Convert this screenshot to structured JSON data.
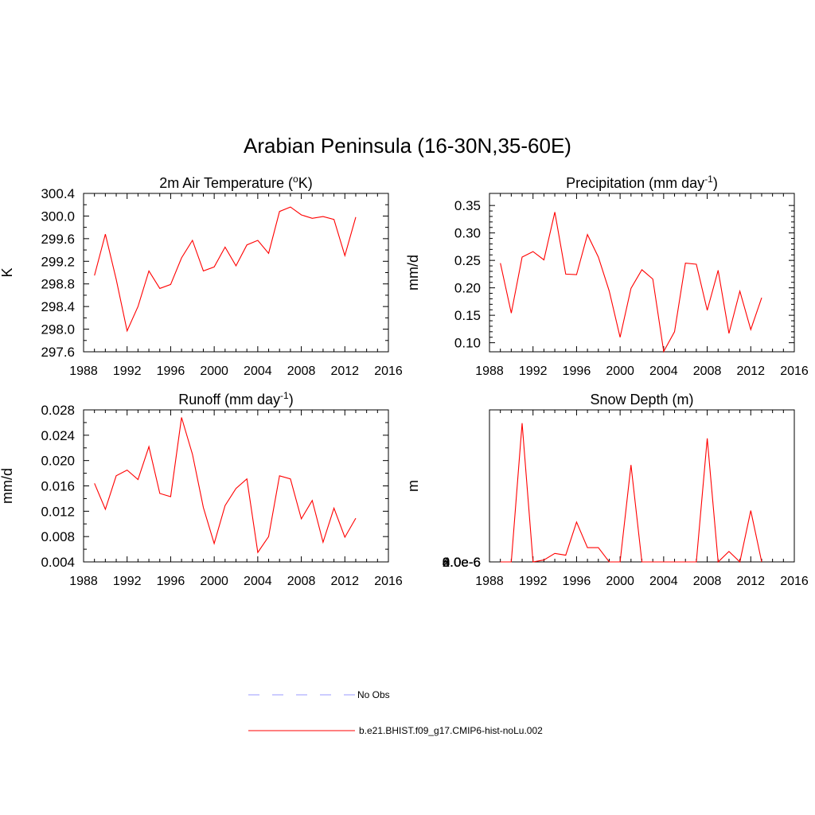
{
  "figure": {
    "title": "Arabian Peninsula (16-30N,35-60E)"
  },
  "legend": {
    "entries": [
      {
        "label": "No Obs",
        "color": "#9999ff",
        "dash": true
      },
      {
        "label": "b.e21.BHIST.f09_g17.CMIP6-hist-noLu.002",
        "color": "#ff0000",
        "dash": false
      }
    ]
  },
  "chart_data": [
    {
      "type": "line",
      "title": "2m Air Temperature (",
      "title_sup": "o",
      "title_after": "K)",
      "ylabel": "K",
      "xlim": [
        1988,
        2016
      ],
      "ylim": [
        297.6,
        300.4
      ],
      "xticks": [
        "1988",
        "1992",
        "1996",
        "2000",
        "2004",
        "2008",
        "2012",
        "2016"
      ],
      "yticks": [
        "297.6",
        "298.0",
        "298.4",
        "298.8",
        "299.2",
        "299.6",
        "300.0",
        "300.4"
      ],
      "series": [
        {
          "color": "#ff0000",
          "x": [
            1989,
            1990,
            1991,
            1992,
            1993,
            1994,
            1995,
            1996,
            1997,
            1998,
            1999,
            2000,
            2001,
            2002,
            2003,
            2004,
            2005,
            2006,
            2007,
            2008,
            2009,
            2010,
            2011,
            2012,
            2013
          ],
          "y": [
            298.95,
            299.68,
            298.88,
            297.97,
            298.4,
            299.03,
            298.72,
            298.79,
            299.26,
            299.57,
            299.03,
            299.1,
            299.45,
            299.12,
            299.49,
            299.57,
            299.34,
            300.08,
            300.16,
            300.02,
            299.96,
            299.99,
            299.94,
            299.3,
            299.98
          ]
        }
      ]
    },
    {
      "type": "line",
      "title": "Precipitation (mm day",
      "title_sup": "-1",
      "title_after": ")",
      "ylabel": "mm/d",
      "xlim": [
        1988,
        2016
      ],
      "ylim": [
        0.0835,
        0.372
      ],
      "xticks": [
        "1988",
        "1992",
        "1996",
        "2000",
        "2004",
        "2008",
        "2012",
        "2016"
      ],
      "yticks": [
        "0.10",
        "0.15",
        "0.20",
        "0.25",
        "0.30",
        "0.35"
      ],
      "series": [
        {
          "color": "#ff0000",
          "x": [
            1989,
            1990,
            1991,
            1992,
            1993,
            1994,
            1995,
            1996,
            1997,
            1998,
            1999,
            2000,
            2001,
            2002,
            2003,
            2004,
            2005,
            2006,
            2007,
            2008,
            2009,
            2010,
            2011,
            2012,
            2013
          ],
          "y": [
            0.245,
            0.154,
            0.256,
            0.266,
            0.251,
            0.338,
            0.225,
            0.224,
            0.297,
            0.256,
            0.194,
            0.11,
            0.199,
            0.233,
            0.216,
            0.084,
            0.12,
            0.245,
            0.243,
            0.159,
            0.232,
            0.117,
            0.194,
            0.124,
            0.182
          ]
        }
      ]
    },
    {
      "type": "line",
      "title": "Runoff (mm day",
      "title_sup": "-1",
      "title_after": ")",
      "ylabel": "mm/d",
      "xlim": [
        1988,
        2016
      ],
      "ylim": [
        0.004,
        0.028
      ],
      "xticks": [
        "1988",
        "1992",
        "1996",
        "2000",
        "2004",
        "2008",
        "2012",
        "2016"
      ],
      "yticks": [
        "0.004",
        "0.008",
        "0.012",
        "0.016",
        "0.020",
        "0.024",
        "0.028"
      ],
      "series": [
        {
          "color": "#ff0000",
          "x": [
            1989,
            1990,
            1991,
            1992,
            1993,
            1994,
            1995,
            1996,
            1997,
            1998,
            1999,
            2000,
            2001,
            2002,
            2003,
            2004,
            2005,
            2006,
            2007,
            2008,
            2009,
            2010,
            2011,
            2012,
            2013
          ],
          "y": [
            0.0164,
            0.0123,
            0.0176,
            0.0185,
            0.017,
            0.0222,
            0.0148,
            0.0143,
            0.0268,
            0.021,
            0.0126,
            0.0069,
            0.0129,
            0.0156,
            0.0171,
            0.0055,
            0.008,
            0.0176,
            0.0171,
            0.0108,
            0.0137,
            0.0071,
            0.0125,
            0.0079,
            0.0109
          ]
        }
      ]
    },
    {
      "type": "line",
      "title": "Snow Depth (m)",
      "title_sup": "",
      "title_after": "",
      "ylabel": "m",
      "xlim": [
        1988,
        2016
      ],
      "ylim": [
        0,
        8e-06
      ],
      "xticks": [
        "1988",
        "1992",
        "1996",
        "2000",
        "2004",
        "2008",
        "2012",
        "2016"
      ],
      "yticks": [
        "0.0e-6",
        "2.0e-6",
        "4.0e-6",
        "6.0e-6",
        "8.0e-6"
      ],
      "series": [
        {
          "color": "#ff0000",
          "x": [
            1989,
            1990,
            1991,
            1992,
            1993,
            1994,
            1995,
            1996,
            1997,
            1998,
            1999,
            2000,
            2001,
            2002,
            2003,
            2004,
            2005,
            2006,
            2007,
            2008,
            2009,
            2010,
            2011,
            2012,
            2013
          ],
          "y": [
            0,
            0,
            7.3e-06,
            0,
            1e-07,
            4.5e-07,
            3.5e-07,
            2.1e-06,
            7.5e-07,
            7.5e-07,
            0,
            0,
            5.1e-06,
            0,
            0,
            0,
            0,
            0,
            0,
            6.5e-06,
            0,
            5.5e-07,
            0,
            2.7e-06,
            0
          ]
        }
      ]
    }
  ]
}
